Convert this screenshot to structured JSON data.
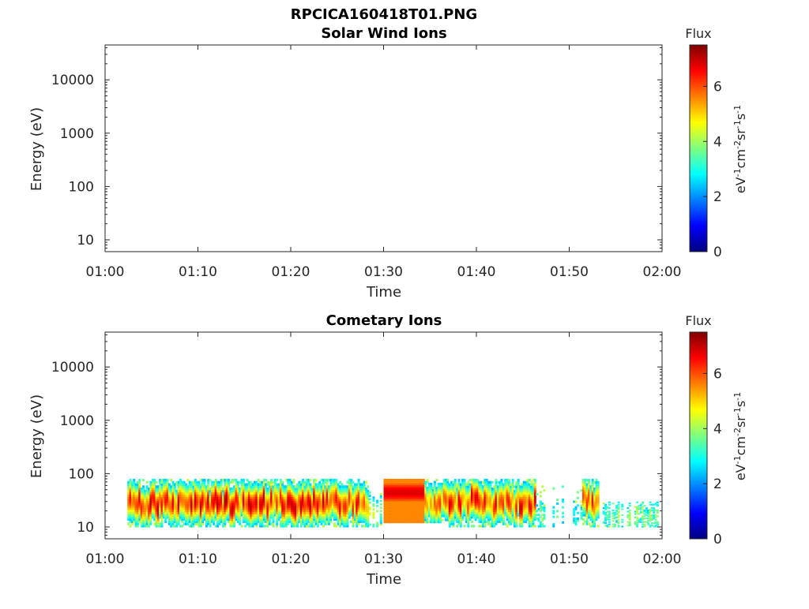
{
  "figure_title": "RPCICA160418T01.PNG",
  "colors": {
    "jet": [
      "#00007f",
      "#0000ff",
      "#007fff",
      "#00ffff",
      "#7fff7f",
      "#ffff00",
      "#ff7f00",
      "#ff0000",
      "#7f0000"
    ],
    "axis": "#262626"
  },
  "chart_data": [
    {
      "type": "heatmap",
      "title": "Solar Wind Ions",
      "xlabel": "Time",
      "ylabel": "Energy (eV)",
      "x_ticks": [
        "01:00",
        "01:10",
        "01:20",
        "01:30",
        "01:40",
        "01:50",
        "02:00"
      ],
      "x_range_minutes": [
        0,
        60
      ],
      "y_scale": "log",
      "y_ticks": [
        10,
        100,
        1000,
        10000
      ],
      "y_tick_labels": [
        "10",
        "100",
        "1000",
        "10000"
      ],
      "y_range": [
        6,
        45000
      ],
      "colorbar": {
        "title": "Flux",
        "label": "eV-1cm-2sr-1s-1",
        "range": [
          0,
          7.5
        ],
        "ticks": [
          0,
          2,
          4,
          6
        ],
        "tick_labels": [
          "0",
          "2",
          "4",
          "6"
        ]
      },
      "data": "empty"
    },
    {
      "type": "heatmap",
      "title": "Cometary Ions",
      "xlabel": "Time",
      "ylabel": "Energy (eV)",
      "x_ticks": [
        "01:00",
        "01:10",
        "01:20",
        "01:30",
        "01:40",
        "01:50",
        "02:00"
      ],
      "x_range_minutes": [
        0,
        60
      ],
      "y_scale": "log",
      "y_ticks": [
        10,
        100,
        1000,
        10000
      ],
      "y_tick_labels": [
        "10",
        "100",
        "1000",
        "10000"
      ],
      "y_range": [
        6,
        45000
      ],
      "colorbar": {
        "title": "Flux",
        "label": "eV-1cm-2sr-1s-1",
        "range": [
          0,
          7.5
        ],
        "ticks": [
          0,
          2,
          4,
          6
        ],
        "tick_labels": [
          "0",
          "2",
          "4",
          "6"
        ]
      },
      "segments": [
        {
          "t_start_min": 2.5,
          "t_end_min": 28.5,
          "e_low": 10,
          "e_high": 80,
          "peak_energy": 28,
          "peak_flux": 7.2,
          "pattern": "variable"
        },
        {
          "t_start_min": 28.5,
          "t_end_min": 30.0,
          "e_low": 10,
          "e_high": 50,
          "peak_energy": 20,
          "peak_flux": 4.5,
          "pattern": "sparse"
        },
        {
          "t_start_min": 30.0,
          "t_end_min": 34.5,
          "e_low": 12,
          "e_high": 80,
          "peak_energy": 45,
          "peak_flux": 6.8,
          "pattern": "uniform"
        },
        {
          "t_start_min": 34.5,
          "t_end_min": 37.0,
          "e_low": 12,
          "e_high": 80,
          "peak_energy": 30,
          "peak_flux": 6.5,
          "pattern": "variable"
        },
        {
          "t_start_min": 37.0,
          "t_end_min": 46.5,
          "e_low": 10,
          "e_high": 80,
          "peak_energy": 30,
          "peak_flux": 7.0,
          "pattern": "variable"
        },
        {
          "t_start_min": 46.5,
          "t_end_min": 51.5,
          "e_low": 10,
          "e_high": 60,
          "peak_energy": 18,
          "peak_flux": 4.0,
          "pattern": "sparse"
        },
        {
          "t_start_min": 51.5,
          "t_end_min": 53.3,
          "e_low": 10,
          "e_high": 80,
          "peak_energy": 30,
          "peak_flux": 6.8,
          "pattern": "variable"
        },
        {
          "t_start_min": 53.3,
          "t_end_min": 60.0,
          "e_low": 10,
          "e_high": 30,
          "peak_energy": 15,
          "peak_flux": 4.3,
          "pattern": "sparse"
        }
      ]
    }
  ]
}
